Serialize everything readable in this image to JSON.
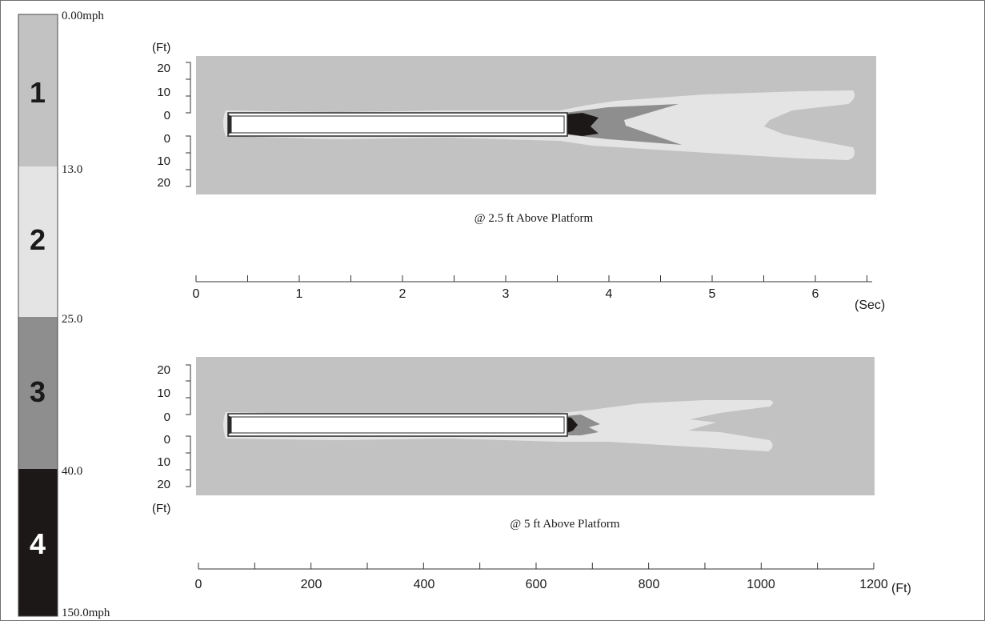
{
  "legend": {
    "bands": [
      {
        "number": "1",
        "color": "#c2c2c2",
        "text_color": "#1a1a1a"
      },
      {
        "number": "2",
        "color": "#e4e4e4",
        "text_color": "#1a1a1a"
      },
      {
        "number": "3",
        "color": "#8e8e8e",
        "text_color": "#1a1a1a"
      },
      {
        "number": "4",
        "color": "#1c1817",
        "text_color": "#ffffff"
      }
    ],
    "boundaries": [
      "0.00mph",
      "13.0",
      "25.0",
      "40.0",
      "150.0mph"
    ]
  },
  "panels": [
    {
      "caption": "@ 2.5 ft Above Platform",
      "unit_label": "(Ft)",
      "y_ticks_upper": [
        "20",
        "10",
        "0"
      ],
      "y_ticks_lower": [
        "0",
        "10",
        "20"
      ]
    },
    {
      "caption": "@ 5 ft Above Platform",
      "unit_label": "(Ft)",
      "y_ticks_upper": [
        "20",
        "10",
        "0"
      ],
      "y_ticks_lower": [
        "0",
        "10",
        "20"
      ]
    }
  ],
  "time_axis": {
    "labels": [
      "0",
      "1",
      "2",
      "3",
      "4",
      "5",
      "6"
    ],
    "unit": "(Sec)"
  },
  "distance_axis": {
    "labels": [
      "0",
      "200",
      "400",
      "600",
      "800",
      "1000",
      "1200"
    ],
    "unit": "(Ft)"
  }
}
